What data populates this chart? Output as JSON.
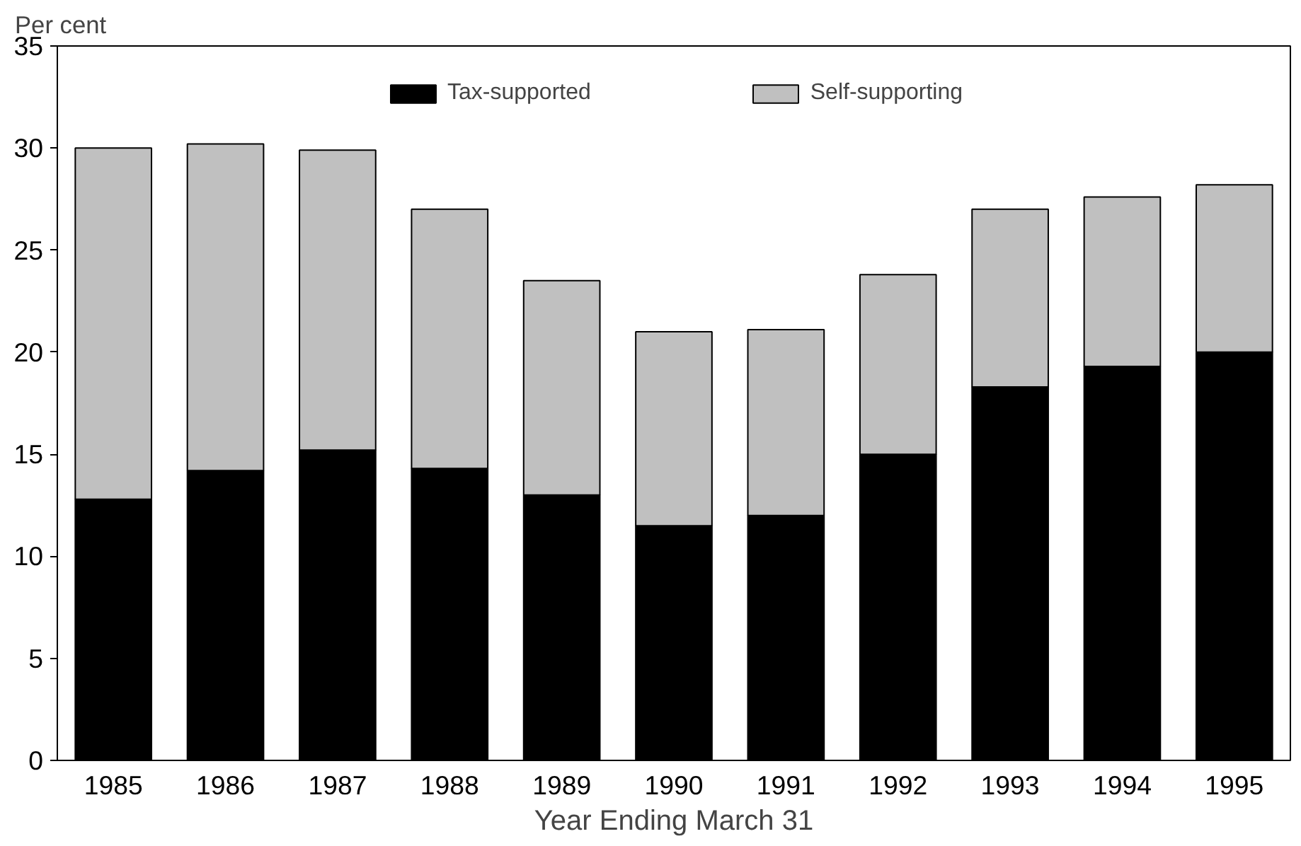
{
  "chart_data": {
    "type": "bar",
    "stacked": true,
    "xlabel": "Year Ending March 31",
    "ylabel": "Per cent",
    "categories": [
      "1985",
      "1986",
      "1987",
      "1988",
      "1989",
      "1990",
      "1991",
      "1992",
      "1993",
      "1994",
      "1995"
    ],
    "series": [
      {
        "name": "Tax-supported",
        "color": "#000000",
        "values": [
          12.8,
          14.2,
          15.2,
          14.3,
          13.0,
          11.5,
          12.0,
          15.0,
          18.3,
          19.3,
          20.0
        ]
      },
      {
        "name": "Self-supporting",
        "color": "#c0c0c0",
        "values": [
          17.2,
          16.0,
          14.7,
          12.7,
          10.5,
          9.5,
          9.1,
          8.8,
          8.7,
          8.3,
          8.2
        ]
      }
    ],
    "ylim": [
      0,
      35
    ],
    "yticks": [
      0,
      5,
      10,
      15,
      20,
      25,
      30,
      35
    ],
    "grid": false,
    "legend": "top"
  }
}
